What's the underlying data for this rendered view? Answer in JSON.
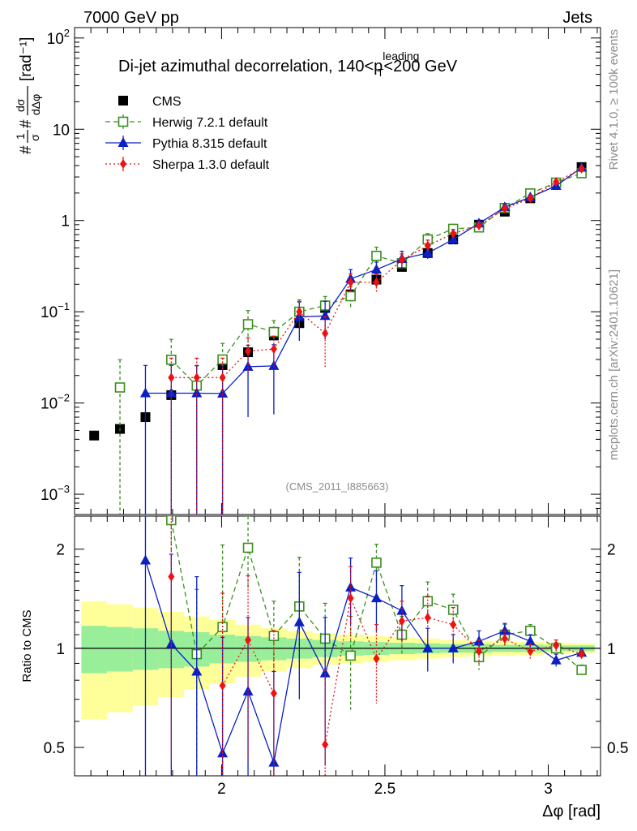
{
  "header": {
    "left": "7000 GeV pp",
    "right": "Jets"
  },
  "side": {
    "rivet": "Rivet 4.1.0, ≥ 100k events",
    "mcplots": "mcplots.cern.ch [arXiv:2401.10621]"
  },
  "watermark": "(CMS_2011_I885663)",
  "chart_data": {
    "type": "scatter",
    "title": {
      "main": "Di-jet azimuthal decorrelation, 140<p",
      "sup": "leading",
      "sub": "T",
      "tail": "<200 GeV"
    },
    "xlabel": "Δφ [rad]",
    "ylabel": "#1/σ # dσ/dΔφ [rad⁻¹]",
    "ylabel_parts": {
      "hash1": "#",
      "frac1_num": "1",
      "frac1_den": "σ",
      "hash2": "#",
      "frac2_num": "dσ",
      "frac2_den": "dΔφ",
      "unit": "[rad⁻¹]"
    },
    "ratio_ylabel": "Ratio to CMS",
    "xlim": [
      1.55,
      3.16
    ],
    "ylim_main": [
      0.0006,
      130
    ],
    "ylim_ratio": [
      0.41,
      2.52
    ],
    "yscale": "log",
    "x_ticks": [
      {
        "value": 2,
        "label": "2"
      },
      {
        "value": 2.5,
        "label": "2.5"
      },
      {
        "value": 3,
        "label": "3"
      }
    ],
    "y_ticks_main": [
      {
        "value": 0.001,
        "base": "10",
        "exp": "−3"
      },
      {
        "value": 0.01,
        "base": "10",
        "exp": "−2"
      },
      {
        "value": 0.1,
        "base": "10",
        "exp": "−1"
      },
      {
        "value": 1,
        "base": "1",
        "exp": ""
      },
      {
        "value": 10,
        "base": "10",
        "exp": ""
      },
      {
        "value": 100,
        "base": "10",
        "exp": "2"
      }
    ],
    "y_ticks_ratio": [
      {
        "value": 0.5,
        "label": "0.5"
      },
      {
        "value": 1,
        "label": "1"
      },
      {
        "value": 2,
        "label": "2"
      }
    ],
    "x": [
      1.61,
      1.689,
      1.767,
      1.846,
      1.924,
      2.003,
      2.081,
      2.16,
      2.238,
      2.317,
      2.395,
      2.474,
      2.552,
      2.631,
      2.709,
      2.788,
      2.867,
      2.945,
      3.024,
      3.102
    ],
    "x_edges": [
      1.571,
      1.649,
      1.728,
      1.806,
      1.885,
      1.963,
      2.042,
      2.121,
      2.199,
      2.278,
      2.356,
      2.435,
      2.513,
      2.592,
      2.67,
      2.749,
      2.827,
      2.906,
      2.985,
      3.063,
      3.142
    ],
    "band": {
      "stat_hi": [
        1.17,
        1.16,
        1.15,
        1.13,
        1.12,
        1.1,
        1.09,
        1.08,
        1.07,
        1.06,
        1.05,
        1.045,
        1.04,
        1.035,
        1.03,
        1.03,
        1.025,
        1.025,
        1.02,
        1.02
      ],
      "stat_lo": [
        0.84,
        0.85,
        0.86,
        0.87,
        0.88,
        0.9,
        0.91,
        0.92,
        0.93,
        0.94,
        0.95,
        0.955,
        0.96,
        0.965,
        0.97,
        0.97,
        0.975,
        0.975,
        0.98,
        0.98
      ],
      "tot_hi": [
        1.39,
        1.36,
        1.33,
        1.29,
        1.25,
        1.22,
        1.18,
        1.15,
        1.13,
        1.11,
        1.1,
        1.09,
        1.08,
        1.07,
        1.06,
        1.055,
        1.05,
        1.045,
        1.04,
        1.035
      ],
      "tot_lo": [
        0.61,
        0.64,
        0.67,
        0.71,
        0.75,
        0.78,
        0.82,
        0.85,
        0.87,
        0.89,
        0.9,
        0.91,
        0.92,
        0.93,
        0.94,
        0.945,
        0.95,
        0.955,
        0.96,
        0.965
      ]
    },
    "series": [
      {
        "name": "CMS",
        "marker": "square-filled",
        "color": "#000000",
        "line": "none",
        "values": [
          0.0044,
          0.0052,
          0.007,
          0.0122,
          0.0155,
          0.026,
          0.036,
          0.055,
          0.075,
          0.11,
          0.155,
          0.225,
          0.31,
          0.44,
          0.62,
          0.9,
          1.25,
          1.75,
          2.6,
          3.85
        ],
        "err_lo": [
          0.0002,
          0.0002,
          0.0003,
          0.0004,
          0.0005,
          0.0008,
          0.001,
          0.0015,
          0.002,
          0.003,
          0.004,
          0.006,
          0.008,
          0.01,
          0.015,
          0.02,
          0.03,
          0.04,
          0.05,
          0.08
        ],
        "err_hi": [
          0.0002,
          0.0002,
          0.0003,
          0.0004,
          0.0005,
          0.0008,
          0.001,
          0.0015,
          0.002,
          0.003,
          0.004,
          0.006,
          0.008,
          0.01,
          0.015,
          0.02,
          0.03,
          0.04,
          0.05,
          0.08
        ]
      },
      {
        "name": "Herwig 7.2.1 default",
        "marker": "square-open",
        "color": "#3a8f1f",
        "line": "dashed",
        "values": [
          null,
          0.0148,
          null,
          0.0298,
          0.0155,
          0.03,
          0.073,
          0.06,
          0.1,
          0.117,
          0.148,
          0.41,
          0.34,
          0.62,
          0.81,
          0.84,
          1.37,
          1.98,
          2.6,
          3.3
        ],
        "err_lo": [
          null,
          0.0148,
          null,
          0.0298,
          0.0155,
          0.03,
          0.035,
          0.01,
          0.03,
          0.015,
          0.04,
          0.1,
          0.05,
          0.1,
          0.1,
          0.05,
          0.1,
          0.1,
          0.1,
          0.1
        ],
        "err_hi": [
          null,
          0.015,
          null,
          0.02,
          0.01,
          0.015,
          0.03,
          0.02,
          0.035,
          0.03,
          0.04,
          0.1,
          0.05,
          0.1,
          0.1,
          0.05,
          0.1,
          0.1,
          0.1,
          0.1
        ],
        "ratio": [
          null,
          null,
          null,
          2.45,
          0.96,
          1.16,
          2.02,
          1.09,
          1.34,
          1.07,
          0.95,
          1.82,
          1.1,
          1.39,
          1.31,
          0.94,
          1.1,
          1.13,
          1.0,
          0.86
        ],
        "ratio_err": [
          null,
          null,
          null,
          0.8,
          0.55,
          0.9,
          0.5,
          0.3,
          0.55,
          0.3,
          0.3,
          0.25,
          0.15,
          0.2,
          0.15,
          0.08,
          0.08,
          0.05,
          0.04,
          0.03
        ]
      },
      {
        "name": "Pythia 8.315 default",
        "marker": "triangle-filled",
        "color": "#0a1fc4",
        "line": "solid",
        "values": [
          null,
          null,
          0.0128,
          0.0128,
          0.0128,
          0.0127,
          0.025,
          0.0255,
          0.088,
          0.09,
          0.23,
          0.29,
          0.38,
          0.44,
          0.62,
          0.93,
          1.4,
          1.8,
          2.4,
          3.8
        ],
        "err_lo": [
          null,
          null,
          0.0128,
          0.0128,
          0.0128,
          0.0127,
          0.018,
          0.018,
          0.04,
          0.04,
          0.06,
          0.06,
          0.08,
          0.06,
          0.07,
          0.08,
          0.1,
          0.1,
          0.1,
          0.1
        ],
        "err_hi": [
          null,
          null,
          0.013,
          0.013,
          0.013,
          0.013,
          0.018,
          0.018,
          0.04,
          0.04,
          0.06,
          0.06,
          0.08,
          0.06,
          0.07,
          0.08,
          0.1,
          0.1,
          0.1,
          0.1
        ],
        "ratio": [
          null,
          null,
          1.85,
          1.03,
          0.85,
          0.48,
          0.74,
          0.45,
          1.2,
          0.84,
          1.53,
          1.42,
          1.3,
          1.0,
          1.0,
          1.05,
          1.13,
          1.05,
          0.92,
          0.97
        ],
        "ratio_err": [
          null,
          null,
          1.5,
          0.9,
          0.8,
          0.6,
          0.5,
          0.4,
          0.5,
          0.4,
          0.35,
          0.3,
          0.25,
          0.15,
          0.1,
          0.08,
          0.06,
          0.05,
          0.04,
          0.03
        ]
      },
      {
        "name": "Sherpa 1.3.0 default",
        "marker": "diamond-filled",
        "color": "#ee1111",
        "line": "dotted",
        "values": [
          null,
          null,
          null,
          0.019,
          0.019,
          0.019,
          0.037,
          0.039,
          0.1,
          0.058,
          0.21,
          0.21,
          0.37,
          0.53,
          0.72,
          0.88,
          1.35,
          1.75,
          2.65,
          3.7
        ],
        "err_lo": [
          null,
          null,
          null,
          0.019,
          0.019,
          0.019,
          0.015,
          0.015,
          0.03,
          0.034,
          0.05,
          0.05,
          0.06,
          0.08,
          0.08,
          0.05,
          0.08,
          0.08,
          0.08,
          0.08
        ],
        "err_hi": [
          null,
          null,
          null,
          0.012,
          0.012,
          0.012,
          0.015,
          0.015,
          0.03,
          0.03,
          0.05,
          0.05,
          0.06,
          0.08,
          0.08,
          0.05,
          0.08,
          0.08,
          0.08,
          0.08
        ],
        "ratio": [
          null,
          null,
          null,
          1.65,
          null,
          0.77,
          1.06,
          0.73,
          null,
          0.51,
          1.42,
          0.93,
          1.21,
          1.24,
          1.18,
          0.98,
          1.07,
          0.98,
          1.02,
          0.96
        ],
        "ratio_err": [
          null,
          null,
          null,
          1.2,
          null,
          0.7,
          0.6,
          0.4,
          null,
          0.35,
          0.35,
          0.25,
          0.18,
          0.2,
          0.15,
          0.08,
          0.06,
          0.05,
          0.04,
          0.03
        ]
      }
    ],
    "legend_position": "top-left"
  }
}
